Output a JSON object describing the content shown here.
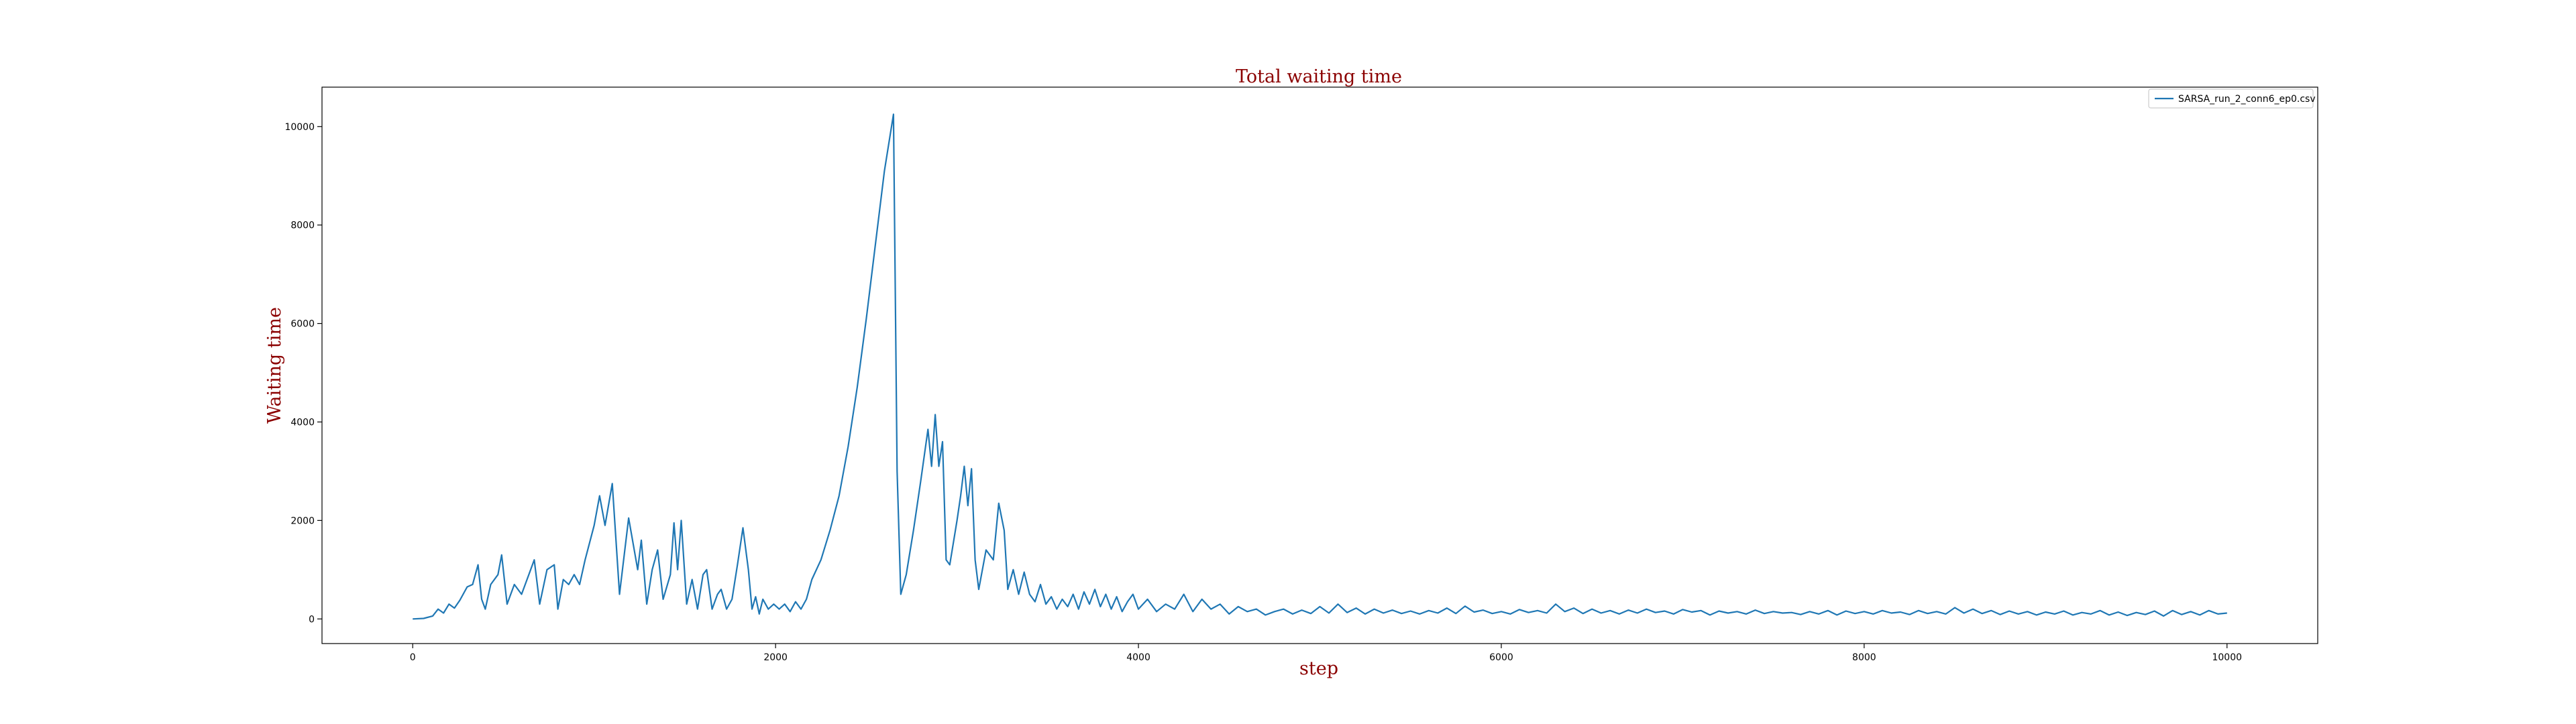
{
  "chart_data": {
    "type": "line",
    "title": "Total waiting time",
    "xlabel": "step",
    "ylabel": "Waiting time",
    "xlim": [
      -500,
      10500
    ],
    "ylim": [
      -500,
      10800
    ],
    "xticks": [
      0,
      2000,
      4000,
      6000,
      8000,
      10000
    ],
    "yticks": [
      0,
      2000,
      4000,
      6000,
      8000,
      10000
    ],
    "grid": false,
    "legend_position": "top-right",
    "series": [
      {
        "name": "SARSA_run_2_conn6_ep0.csv",
        "color": "#1f77b4",
        "points": [
          [
            0,
            0
          ],
          [
            60,
            10
          ],
          [
            110,
            60
          ],
          [
            140,
            200
          ],
          [
            170,
            120
          ],
          [
            200,
            300
          ],
          [
            230,
            220
          ],
          [
            260,
            380
          ],
          [
            300,
            650
          ],
          [
            330,
            700
          ],
          [
            360,
            1100
          ],
          [
            380,
            400
          ],
          [
            400,
            200
          ],
          [
            430,
            700
          ],
          [
            470,
            900
          ],
          [
            490,
            1300
          ],
          [
            520,
            300
          ],
          [
            560,
            700
          ],
          [
            600,
            500
          ],
          [
            640,
            900
          ],
          [
            670,
            1200
          ],
          [
            700,
            300
          ],
          [
            740,
            1000
          ],
          [
            780,
            1100
          ],
          [
            800,
            200
          ],
          [
            830,
            800
          ],
          [
            860,
            700
          ],
          [
            890,
            900
          ],
          [
            920,
            700
          ],
          [
            950,
            1200
          ],
          [
            1000,
            1900
          ],
          [
            1030,
            2500
          ],
          [
            1060,
            1900
          ],
          [
            1100,
            2750
          ],
          [
            1140,
            500
          ],
          [
            1190,
            2050
          ],
          [
            1240,
            1000
          ],
          [
            1260,
            1600
          ],
          [
            1290,
            300
          ],
          [
            1320,
            1000
          ],
          [
            1350,
            1400
          ],
          [
            1380,
            400
          ],
          [
            1420,
            900
          ],
          [
            1440,
            1950
          ],
          [
            1460,
            1000
          ],
          [
            1480,
            2000
          ],
          [
            1510,
            300
          ],
          [
            1540,
            800
          ],
          [
            1570,
            200
          ],
          [
            1600,
            900
          ],
          [
            1620,
            1000
          ],
          [
            1650,
            200
          ],
          [
            1680,
            500
          ],
          [
            1700,
            600
          ],
          [
            1730,
            200
          ],
          [
            1760,
            400
          ],
          [
            1790,
            1100
          ],
          [
            1820,
            1850
          ],
          [
            1850,
            1000
          ],
          [
            1870,
            200
          ],
          [
            1890,
            450
          ],
          [
            1910,
            100
          ],
          [
            1930,
            400
          ],
          [
            1960,
            200
          ],
          [
            1990,
            300
          ],
          [
            2020,
            200
          ],
          [
            2050,
            300
          ],
          [
            2080,
            150
          ],
          [
            2110,
            350
          ],
          [
            2140,
            200
          ],
          [
            2170,
            400
          ],
          [
            2200,
            800
          ],
          [
            2250,
            1200
          ],
          [
            2300,
            1800
          ],
          [
            2350,
            2500
          ],
          [
            2400,
            3500
          ],
          [
            2450,
            4700
          ],
          [
            2500,
            6100
          ],
          [
            2550,
            7600
          ],
          [
            2600,
            9100
          ],
          [
            2650,
            10250
          ],
          [
            2670,
            3000
          ],
          [
            2690,
            500
          ],
          [
            2720,
            900
          ],
          [
            2760,
            1800
          ],
          [
            2800,
            2800
          ],
          [
            2840,
            3850
          ],
          [
            2860,
            3100
          ],
          [
            2880,
            4150
          ],
          [
            2900,
            3100
          ],
          [
            2920,
            3600
          ],
          [
            2940,
            1200
          ],
          [
            2960,
            1100
          ],
          [
            3000,
            2000
          ],
          [
            3020,
            2500
          ],
          [
            3040,
            3100
          ],
          [
            3060,
            2300
          ],
          [
            3080,
            3050
          ],
          [
            3100,
            1200
          ],
          [
            3120,
            600
          ],
          [
            3160,
            1400
          ],
          [
            3200,
            1200
          ],
          [
            3230,
            2350
          ],
          [
            3260,
            1800
          ],
          [
            3280,
            600
          ],
          [
            3310,
            1000
          ],
          [
            3340,
            500
          ],
          [
            3370,
            950
          ],
          [
            3400,
            500
          ],
          [
            3430,
            350
          ],
          [
            3460,
            700
          ],
          [
            3490,
            300
          ],
          [
            3520,
            450
          ],
          [
            3550,
            200
          ],
          [
            3580,
            400
          ],
          [
            3610,
            250
          ],
          [
            3640,
            500
          ],
          [
            3670,
            200
          ],
          [
            3700,
            550
          ],
          [
            3730,
            300
          ],
          [
            3760,
            600
          ],
          [
            3790,
            250
          ],
          [
            3820,
            500
          ],
          [
            3850,
            200
          ],
          [
            3880,
            450
          ],
          [
            3910,
            150
          ],
          [
            3940,
            350
          ],
          [
            3970,
            500
          ],
          [
            4000,
            200
          ],
          [
            4050,
            400
          ],
          [
            4100,
            150
          ],
          [
            4150,
            300
          ],
          [
            4200,
            200
          ],
          [
            4250,
            500
          ],
          [
            4300,
            150
          ],
          [
            4350,
            400
          ],
          [
            4400,
            200
          ],
          [
            4450,
            300
          ],
          [
            4500,
            100
          ],
          [
            4550,
            250
          ],
          [
            4600,
            150
          ],
          [
            4650,
            200
          ],
          [
            4700,
            80
          ],
          [
            4750,
            150
          ],
          [
            4800,
            200
          ],
          [
            4850,
            100
          ],
          [
            4900,
            180
          ],
          [
            4950,
            110
          ],
          [
            5000,
            250
          ],
          [
            5050,
            120
          ],
          [
            5100,
            300
          ],
          [
            5150,
            130
          ],
          [
            5200,
            220
          ],
          [
            5250,
            100
          ],
          [
            5300,
            200
          ],
          [
            5350,
            120
          ],
          [
            5400,
            180
          ],
          [
            5450,
            110
          ],
          [
            5500,
            160
          ],
          [
            5550,
            100
          ],
          [
            5600,
            170
          ],
          [
            5650,
            120
          ],
          [
            5700,
            220
          ],
          [
            5750,
            110
          ],
          [
            5800,
            260
          ],
          [
            5850,
            140
          ],
          [
            5900,
            180
          ],
          [
            5950,
            110
          ],
          [
            6000,
            150
          ],
          [
            6050,
            100
          ],
          [
            6100,
            190
          ],
          [
            6150,
            130
          ],
          [
            6200,
            170
          ],
          [
            6250,
            120
          ],
          [
            6300,
            300
          ],
          [
            6350,
            150
          ],
          [
            6400,
            220
          ],
          [
            6450,
            110
          ],
          [
            6500,
            200
          ],
          [
            6550,
            120
          ],
          [
            6600,
            170
          ],
          [
            6650,
            100
          ],
          [
            6700,
            180
          ],
          [
            6750,
            120
          ],
          [
            6800,
            200
          ],
          [
            6850,
            130
          ],
          [
            6900,
            160
          ],
          [
            6950,
            100
          ],
          [
            7000,
            190
          ],
          [
            7050,
            140
          ],
          [
            7100,
            170
          ],
          [
            7150,
            80
          ],
          [
            7200,
            160
          ],
          [
            7250,
            120
          ],
          [
            7300,
            150
          ],
          [
            7350,
            100
          ],
          [
            7400,
            180
          ],
          [
            7450,
            110
          ],
          [
            7500,
            150
          ],
          [
            7550,
            120
          ],
          [
            7600,
            130
          ],
          [
            7650,
            90
          ],
          [
            7700,
            150
          ],
          [
            7750,
            100
          ],
          [
            7800,
            170
          ],
          [
            7850,
            80
          ],
          [
            7900,
            160
          ],
          [
            7950,
            110
          ],
          [
            8000,
            150
          ],
          [
            8050,
            100
          ],
          [
            8100,
            170
          ],
          [
            8150,
            120
          ],
          [
            8200,
            140
          ],
          [
            8250,
            90
          ],
          [
            8300,
            170
          ],
          [
            8350,
            110
          ],
          [
            8400,
            150
          ],
          [
            8450,
            100
          ],
          [
            8500,
            230
          ],
          [
            8550,
            120
          ],
          [
            8600,
            200
          ],
          [
            8650,
            110
          ],
          [
            8700,
            170
          ],
          [
            8750,
            90
          ],
          [
            8800,
            160
          ],
          [
            8850,
            100
          ],
          [
            8900,
            150
          ],
          [
            8950,
            80
          ],
          [
            9000,
            140
          ],
          [
            9050,
            100
          ],
          [
            9100,
            160
          ],
          [
            9150,
            80
          ],
          [
            9200,
            130
          ],
          [
            9250,
            100
          ],
          [
            9300,
            170
          ],
          [
            9350,
            80
          ],
          [
            9400,
            140
          ],
          [
            9450,
            70
          ],
          [
            9500,
            130
          ],
          [
            9550,
            90
          ],
          [
            9600,
            160
          ],
          [
            9650,
            60
          ],
          [
            9700,
            170
          ],
          [
            9750,
            90
          ],
          [
            9800,
            150
          ],
          [
            9850,
            80
          ],
          [
            9900,
            170
          ],
          [
            9950,
            100
          ],
          [
            10000,
            120
          ]
        ]
      }
    ]
  }
}
